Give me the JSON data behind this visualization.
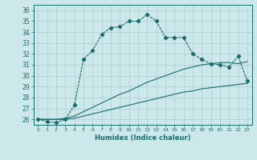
{
  "xlabel": "Humidex (Indice chaleur)",
  "background_color": "#cce8ea",
  "grid_color": "#aacccc",
  "line_color": "#1a6b6b",
  "xlim": [
    -0.5,
    23.5
  ],
  "ylim": [
    25.5,
    36.5
  ],
  "yticks": [
    26,
    27,
    28,
    29,
    30,
    31,
    32,
    33,
    34,
    35,
    36
  ],
  "xticks": [
    0,
    1,
    2,
    3,
    4,
    5,
    6,
    7,
    8,
    9,
    10,
    11,
    12,
    13,
    14,
    15,
    16,
    17,
    18,
    19,
    20,
    21,
    22,
    23
  ],
  "series1_x": [
    0,
    1,
    2,
    3,
    4,
    5,
    6,
    7,
    8,
    9,
    10,
    11,
    12,
    13,
    14,
    15,
    16,
    17,
    18,
    19,
    20,
    21,
    22,
    23
  ],
  "series1_y": [
    26.0,
    25.8,
    25.7,
    26.0,
    27.3,
    31.5,
    32.3,
    33.8,
    34.4,
    34.5,
    35.0,
    35.0,
    35.6,
    35.0,
    33.5,
    33.5,
    33.5,
    32.0,
    31.5,
    31.1,
    31.0,
    30.8,
    31.8,
    29.5
  ],
  "series2_x": [
    0,
    4,
    23
  ],
  "series2_y": [
    26.0,
    26.2,
    29.3
  ],
  "series3_x": [
    0,
    4,
    23
  ],
  "series3_y": [
    26.0,
    26.5,
    31.3
  ],
  "series2_full_x": [
    0,
    1,
    2,
    3,
    4,
    5,
    6,
    7,
    8,
    9,
    10,
    11,
    12,
    13,
    14,
    15,
    16,
    17,
    18,
    19,
    20,
    21,
    22,
    23
  ],
  "series2_full_y": [
    26.0,
    26.0,
    26.0,
    26.0,
    26.1,
    26.3,
    26.5,
    26.7,
    26.9,
    27.1,
    27.3,
    27.5,
    27.7,
    27.9,
    28.1,
    28.3,
    28.5,
    28.6,
    28.8,
    28.9,
    29.0,
    29.1,
    29.2,
    29.3
  ],
  "series3_full_x": [
    0,
    1,
    2,
    3,
    4,
    5,
    6,
    7,
    8,
    9,
    10,
    11,
    12,
    13,
    14,
    15,
    16,
    17,
    18,
    19,
    20,
    21,
    22,
    23
  ],
  "series3_full_y": [
    26.0,
    26.0,
    26.0,
    26.1,
    26.3,
    26.7,
    27.1,
    27.5,
    27.9,
    28.3,
    28.6,
    29.0,
    29.4,
    29.7,
    30.0,
    30.3,
    30.6,
    30.8,
    31.0,
    31.1,
    31.2,
    31.2,
    31.1,
    31.3
  ]
}
